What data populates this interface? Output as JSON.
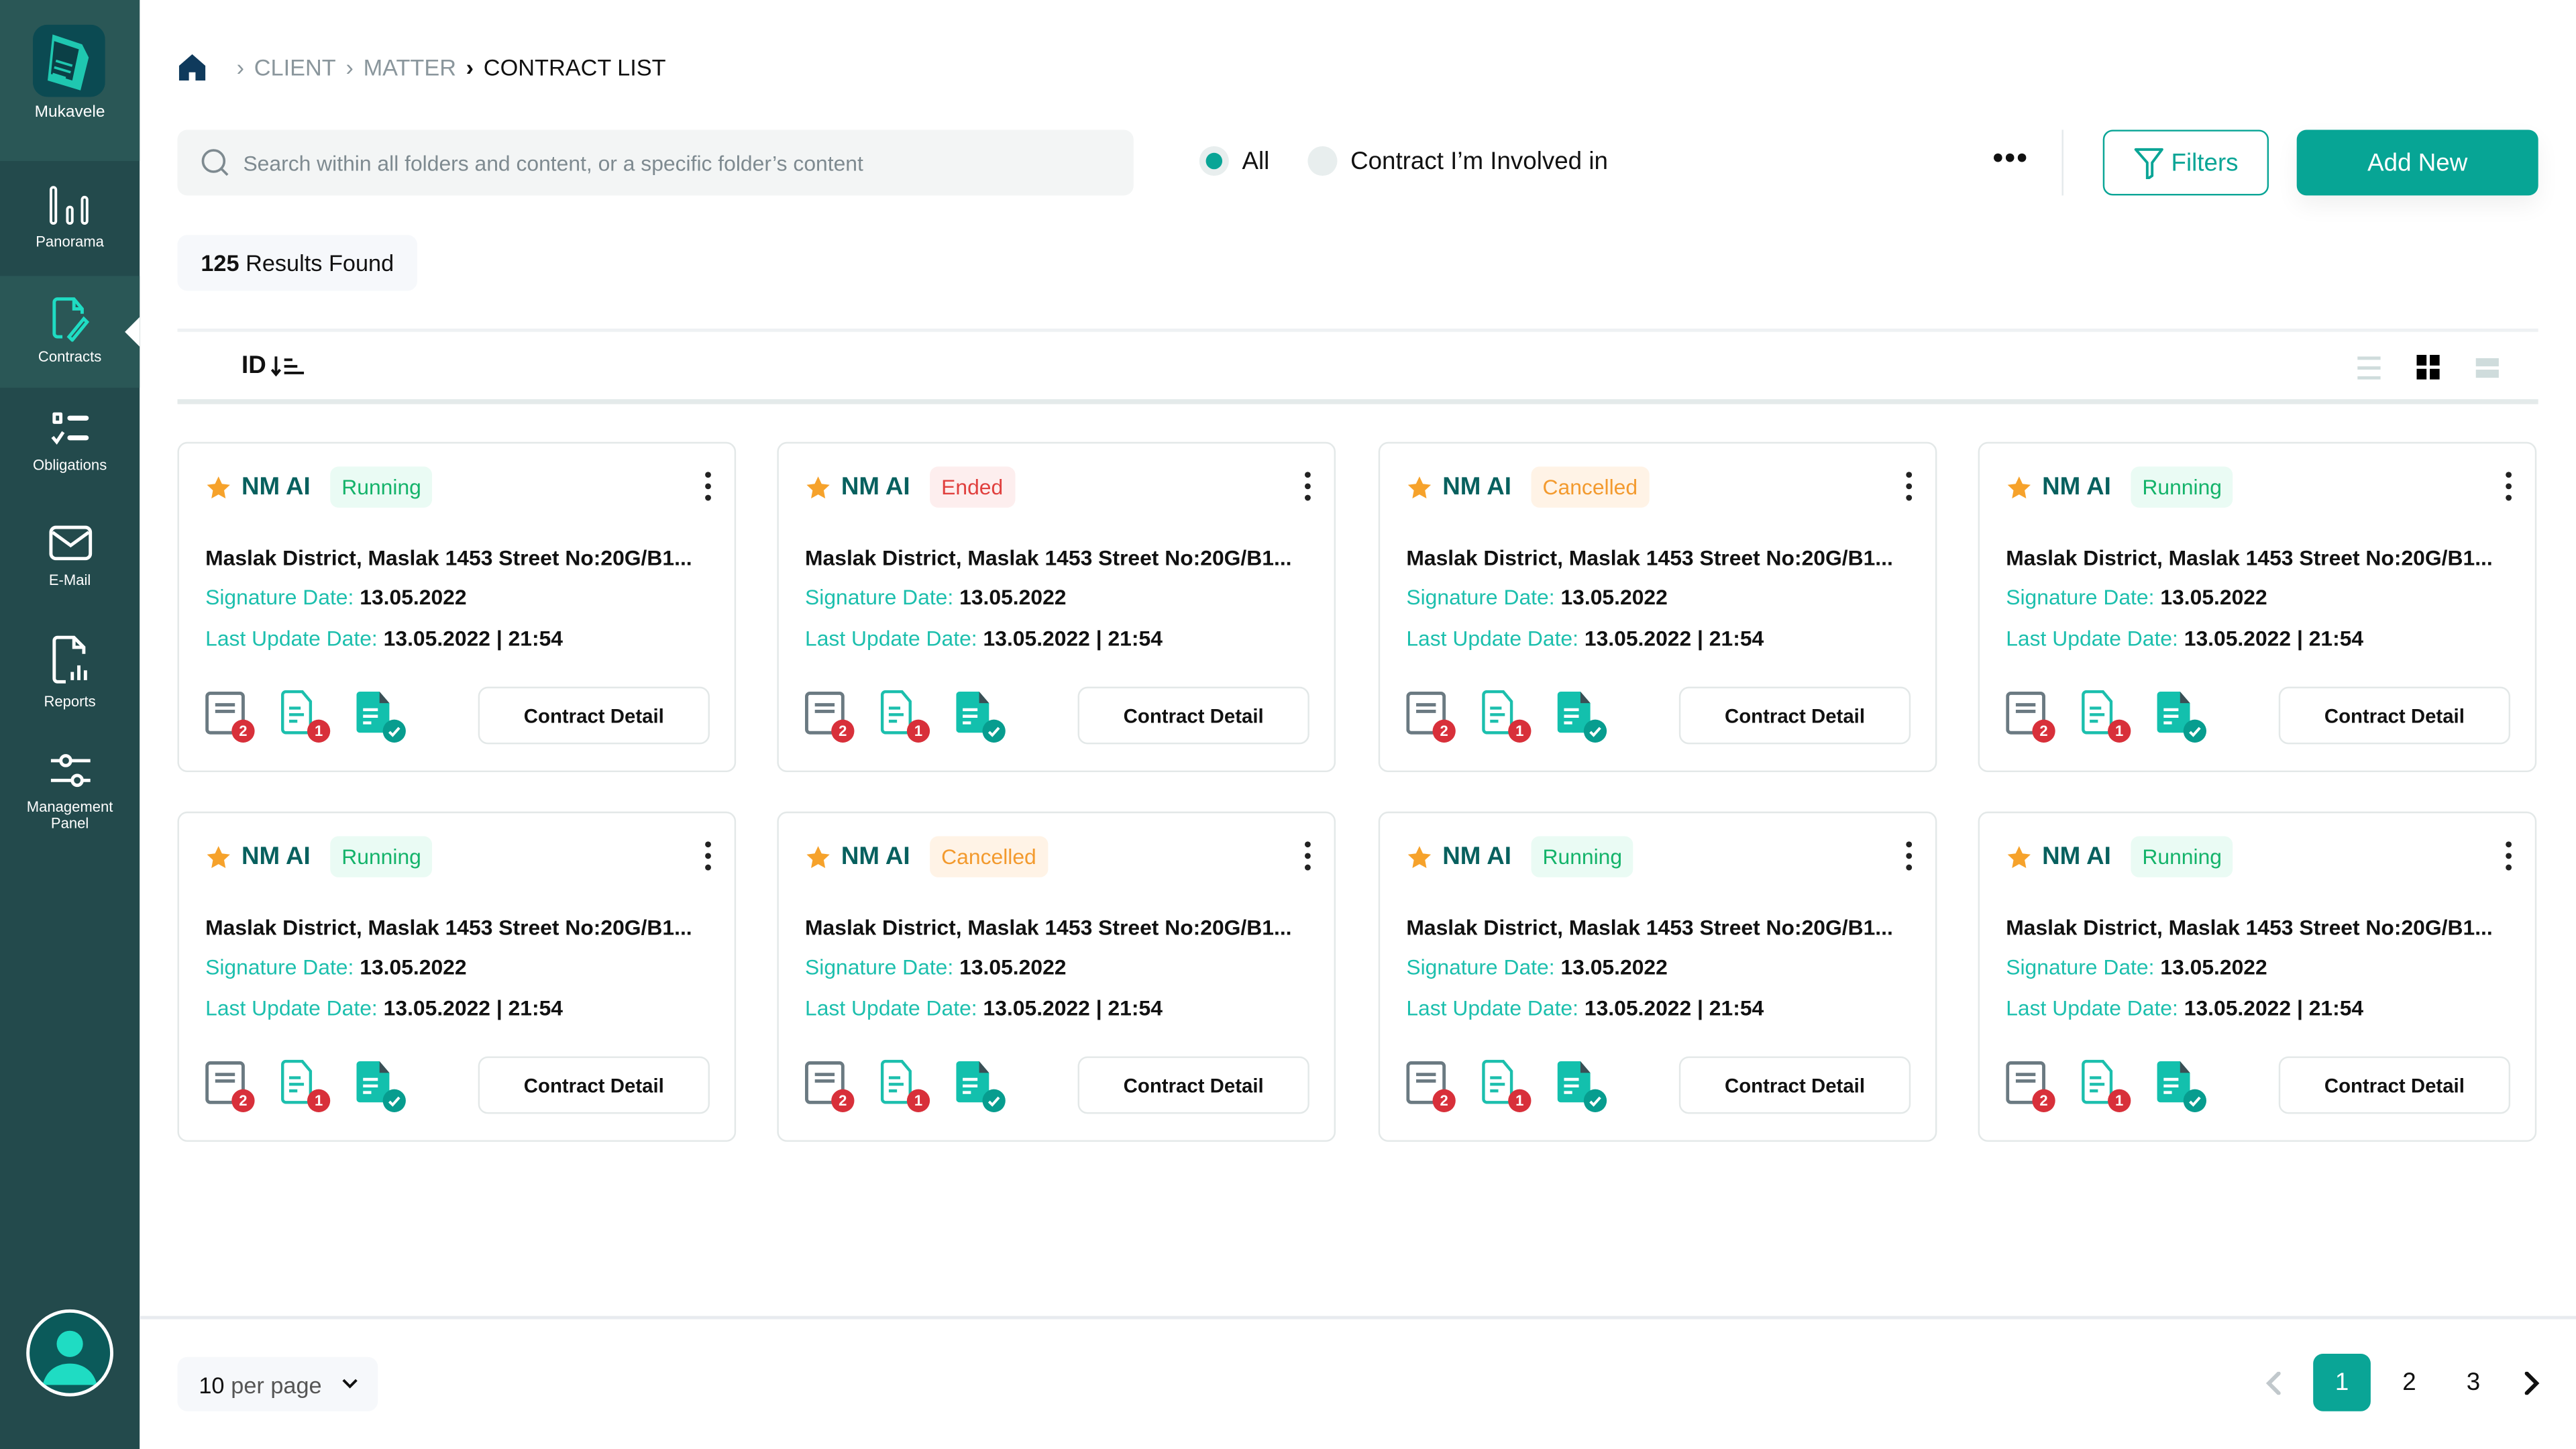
{
  "app": {
    "name": "Mukavele"
  },
  "sidebar": {
    "items": [
      {
        "label": "Panorama",
        "icon": "bar-chart-icon"
      },
      {
        "label": "Contracts",
        "icon": "document-edit-icon",
        "active": true
      },
      {
        "label": "Obligations",
        "icon": "checklist-icon"
      },
      {
        "label": "E-Mail",
        "icon": "mail-icon"
      },
      {
        "label": "Reports",
        "icon": "report-icon"
      },
      {
        "label": "Management Panel",
        "icon": "sliders-icon"
      }
    ]
  },
  "breadcrumb": {
    "items": [
      "CLIENT",
      "MATTER",
      "CONTRACT LIST"
    ]
  },
  "search": {
    "placeholder": "Search within all folders and content, or a specific folder’s content",
    "value": ""
  },
  "scope": {
    "options": [
      "All",
      "Contract I’m Involved in"
    ],
    "selected": "All"
  },
  "toolbar": {
    "filters_label": "Filters",
    "add_label": "Add New"
  },
  "results": {
    "count": "125",
    "label": "Results Found"
  },
  "sort": {
    "field": "ID"
  },
  "view": {
    "selected": "grid"
  },
  "colors": {
    "accent": "#0aa596",
    "sidebar": "#234a4c",
    "running": "#14b36a",
    "ended": "#e0403e",
    "cancelled": "#f39a2e"
  },
  "cards": [
    {
      "name": "NM AI",
      "status": "Running",
      "address": "Maslak District, Maslak 1453 Street No:20G/B1...",
      "sig_label": "Signature Date:",
      "sig": "13.05.2022",
      "upd_label": "Last Update Date:",
      "upd": "13.05.2022 | 21:54",
      "c1": "2",
      "c2": "1",
      "btn": "Contract Detail"
    },
    {
      "name": "NM AI",
      "status": "Ended",
      "address": "Maslak District, Maslak 1453 Street No:20G/B1...",
      "sig_label": "Signature Date:",
      "sig": "13.05.2022",
      "upd_label": "Last Update Date:",
      "upd": "13.05.2022 | 21:54",
      "c1": "2",
      "c2": "1",
      "btn": "Contract Detail"
    },
    {
      "name": "NM AI",
      "status": "Cancelled",
      "address": "Maslak District, Maslak 1453 Street No:20G/B1...",
      "sig_label": "Signature Date:",
      "sig": "13.05.2022",
      "upd_label": "Last Update Date:",
      "upd": "13.05.2022 | 21:54",
      "c1": "2",
      "c2": "1",
      "btn": "Contract Detail"
    },
    {
      "name": "NM AI",
      "status": "Running",
      "address": "Maslak District, Maslak 1453 Street No:20G/B1...",
      "sig_label": "Signature Date:",
      "sig": "13.05.2022",
      "upd_label": "Last Update Date:",
      "upd": "13.05.2022 | 21:54",
      "c1": "2",
      "c2": "1",
      "btn": "Contract Detail"
    },
    {
      "name": "NM AI",
      "status": "Running",
      "address": "Maslak District, Maslak 1453 Street No:20G/B1...",
      "sig_label": "Signature Date:",
      "sig": "13.05.2022",
      "upd_label": "Last Update Date:",
      "upd": "13.05.2022 | 21:54",
      "c1": "2",
      "c2": "1",
      "btn": "Contract Detail"
    },
    {
      "name": "NM AI",
      "status": "Cancelled",
      "address": "Maslak District, Maslak 1453 Street No:20G/B1...",
      "sig_label": "Signature Date:",
      "sig": "13.05.2022",
      "upd_label": "Last Update Date:",
      "upd": "13.05.2022 | 21:54",
      "c1": "2",
      "c2": "1",
      "btn": "Contract Detail"
    },
    {
      "name": "NM AI",
      "status": "Running",
      "address": "Maslak District, Maslak 1453 Street No:20G/B1...",
      "sig_label": "Signature Date:",
      "sig": "13.05.2022",
      "upd_label": "Last Update Date:",
      "upd": "13.05.2022 | 21:54",
      "c1": "2",
      "c2": "1",
      "btn": "Contract Detail"
    },
    {
      "name": "NM AI",
      "status": "Running",
      "address": "Maslak District, Maslak 1453 Street No:20G/B1...",
      "sig_label": "Signature Date:",
      "sig": "13.05.2022",
      "upd_label": "Last Update Date:",
      "upd": "13.05.2022 | 21:54",
      "c1": "2",
      "c2": "1",
      "btn": "Contract Detail"
    }
  ],
  "footer": {
    "per_page_value": "10",
    "per_page_label": "per page",
    "pages": [
      "1",
      "2",
      "3"
    ],
    "current_page": "1"
  }
}
